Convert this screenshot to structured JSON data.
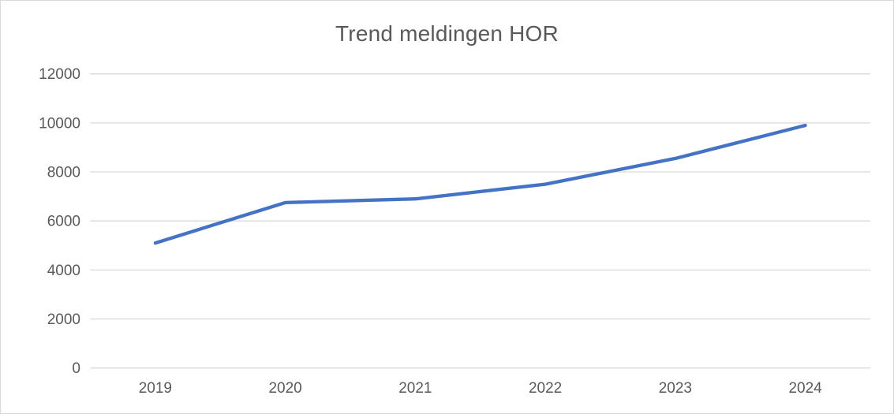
{
  "window": {
    "background": "#ffffff",
    "frame_border_color": "#d9d9d9"
  },
  "chart_data": {
    "type": "line",
    "title": "Trend meldingen HOR",
    "categories": [
      "2019",
      "2020",
      "2021",
      "2022",
      "2023",
      "2024"
    ],
    "values": [
      5100,
      6750,
      6900,
      7500,
      8550,
      9900
    ],
    "xlabel": "",
    "ylabel": "",
    "ylim": [
      0,
      12000
    ],
    "yticks": [
      0,
      2000,
      4000,
      6000,
      8000,
      10000,
      12000
    ],
    "grid": "horizontal",
    "legend": "none",
    "colors": {
      "line": "#4472c4",
      "grid": "#d9d9d9",
      "text": "#595959"
    }
  }
}
